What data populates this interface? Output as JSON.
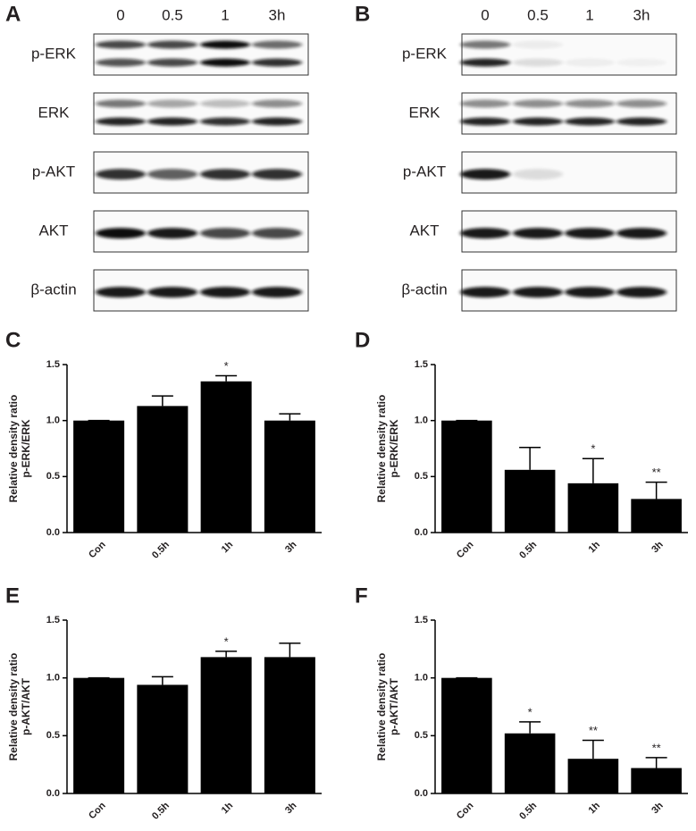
{
  "blots": [
    {
      "panel": "A",
      "lanes": [
        "0",
        "0.5",
        "1",
        "3h"
      ],
      "rows": [
        "p-ERK",
        "ERK",
        "p-AKT",
        "AKT",
        "β-actin"
      ]
    },
    {
      "panel": "B",
      "lanes": [
        "0",
        "0.5",
        "1",
        "3h"
      ],
      "rows": [
        "p-ERK",
        "ERK",
        "p-AKT",
        "AKT",
        "β-actin"
      ]
    }
  ],
  "chart_data": [
    {
      "type": "bar",
      "panel": "C",
      "ylabel": [
        "Relative density ratio",
        "p-ERK/ERK"
      ],
      "categories": [
        "Con",
        "0.5h",
        "1h",
        "3h"
      ],
      "values": [
        1.0,
        1.13,
        1.35,
        1.0
      ],
      "errors": [
        0,
        0.09,
        0.05,
        0.06
      ],
      "significance": [
        null,
        null,
        "*",
        null
      ],
      "color": "#000000",
      "ylim": [
        0,
        1.5
      ],
      "yticks": [
        {
          "value": 0,
          "label": "0.0"
        },
        {
          "value": 0.5,
          "label": "0.5"
        },
        {
          "value": 1,
          "label": "1.0"
        },
        {
          "value": 1.5,
          "label": "1.5"
        }
      ]
    },
    {
      "type": "bar",
      "panel": "D",
      "ylabel": [
        "Relative density ratio",
        "p-ERK/ERK"
      ],
      "categories": [
        "Con",
        "0.5h",
        "1h",
        "3h"
      ],
      "values": [
        1.0,
        0.56,
        0.44,
        0.3
      ],
      "errors": [
        0,
        0.2,
        0.22,
        0.15
      ],
      "significance": [
        null,
        null,
        "*",
        "**"
      ],
      "color": "#000000",
      "ylim": [
        0,
        1.5
      ],
      "yticks": [
        {
          "value": 0,
          "label": "0.0"
        },
        {
          "value": 0.5,
          "label": "0.5"
        },
        {
          "value": 1,
          "label": "1.0"
        },
        {
          "value": 1.5,
          "label": "1.5"
        }
      ]
    },
    {
      "type": "bar",
      "panel": "E",
      "ylabel": [
        "Relative density ratio",
        "p-AKT/AKT"
      ],
      "categories": [
        "Con",
        "0.5h",
        "1h",
        "3h"
      ],
      "values": [
        1.0,
        0.94,
        1.18,
        1.18
      ],
      "errors": [
        0,
        0.07,
        0.05,
        0.12
      ],
      "significance": [
        null,
        null,
        "*",
        null
      ],
      "color": "#000000",
      "ylim": [
        0,
        1.5
      ],
      "yticks": [
        {
          "value": 0,
          "label": "0.0"
        },
        {
          "value": 0.5,
          "label": "0.5"
        },
        {
          "value": 1,
          "label": "1.0"
        },
        {
          "value": 1.5,
          "label": "1.5"
        }
      ]
    },
    {
      "type": "bar",
      "panel": "F",
      "ylabel": [
        "Relative density ratio",
        "p-AKT/AKT"
      ],
      "categories": [
        "Con",
        "0.5h",
        "1h",
        "3h"
      ],
      "values": [
        1.0,
        0.52,
        0.3,
        0.22
      ],
      "errors": [
        0,
        0.1,
        0.16,
        0.09
      ],
      "significance": [
        null,
        "*",
        "**",
        "**"
      ],
      "color": "#000000",
      "ylim": [
        0,
        1.5
      ],
      "yticks": [
        {
          "value": 0,
          "label": "0.0"
        },
        {
          "value": 0.5,
          "label": "0.5"
        },
        {
          "value": 1,
          "label": "1.0"
        },
        {
          "value": 1.5,
          "label": "1.5"
        }
      ]
    }
  ]
}
